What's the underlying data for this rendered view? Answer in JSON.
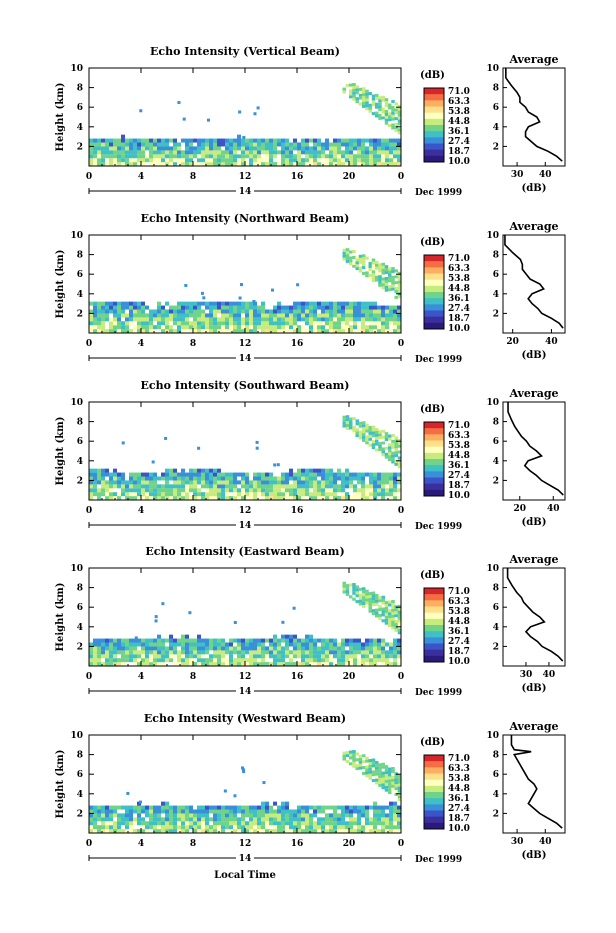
{
  "figure": {
    "xlabel": "Local Time",
    "colorbar_unit": "(dB)",
    "colorbar_ticks": [
      "71.0",
      "63.3",
      "53.8",
      "44.8",
      "36.1",
      "27.4",
      "18.7",
      "10.0"
    ],
    "colorbar_colors": [
      "#d7262b",
      "#f46d43",
      "#fdae61",
      "#fee08b",
      "#ffffbf",
      "#c8eb7d",
      "#6fd48a",
      "#3fc0c6",
      "#3a8fd9",
      "#3b54c7",
      "#3b2f9e",
      "#2a1a7a"
    ],
    "avg_title": "Average",
    "avg_xlabel": "(dB)",
    "date_label": "Dec 1999",
    "day_label": "14",
    "x_ticks": [
      "0",
      "4",
      "8",
      "12",
      "16",
      "20",
      "0"
    ],
    "y_ticks": [
      "10",
      "8",
      "6",
      "4",
      "2"
    ],
    "ylabel": "Height (km)"
  },
  "chart_data": [
    {
      "type": "heatmap",
      "title": "Echo Intensity (Vertical Beam)",
      "xlabel": "Local Time",
      "ylabel": "Height (km)",
      "xlim": [
        0,
        24
      ],
      "ylim": [
        0,
        10
      ],
      "colorbar": {
        "label": "(dB)",
        "range": [
          10.0,
          71.0
        ]
      },
      "layer_top_km": 2.6,
      "cloud": {
        "time_range_h": [
          19.5,
          24
        ],
        "height_range_km": [
          3.5,
          8.0
        ]
      },
      "average_profile": {
        "x_ticks": [
          "30",
          "40"
        ],
        "xlim": [
          25,
          47
        ],
        "height_km": [
          10,
          9,
          8.2,
          7.5,
          7,
          6.5,
          6,
          5.5,
          5,
          4.5,
          4,
          3.5,
          3,
          2.5,
          2,
          1.5,
          1,
          0.5
        ],
        "db": [
          26,
          26,
          28,
          30,
          31,
          31,
          33,
          34,
          37,
          38,
          34,
          33,
          33,
          35,
          37,
          41,
          44,
          46
        ]
      }
    },
    {
      "type": "heatmap",
      "title": "Echo Intensity (Northward Beam)",
      "xlabel": "Local Time",
      "ylabel": "Height (km)",
      "xlim": [
        0,
        24
      ],
      "ylim": [
        0,
        10
      ],
      "colorbar": {
        "label": "(dB)",
        "range": [
          10.0,
          71.0
        ]
      },
      "layer_top_km": 2.9,
      "cloud": {
        "time_range_h": [
          19.5,
          24
        ],
        "height_range_km": [
          3.5,
          8.0
        ]
      },
      "average_profile": {
        "x_ticks": [
          "20",
          "40"
        ],
        "xlim": [
          15,
          47
        ],
        "height_km": [
          10,
          9,
          8.2,
          7.5,
          7,
          6.5,
          6,
          5.5,
          5,
          4.5,
          4,
          3.5,
          3,
          2.5,
          2,
          1.5,
          1,
          0.5
        ],
        "db": [
          16,
          16,
          20,
          24,
          25,
          25,
          27,
          29,
          34,
          36,
          30,
          28,
          30,
          33,
          35,
          40,
          44,
          46
        ]
      }
    },
    {
      "type": "heatmap",
      "title": "Echo Intensity (Southward Beam)",
      "xlabel": "Local Time",
      "ylabel": "Height (km)",
      "xlim": [
        0,
        24
      ],
      "ylim": [
        0,
        10
      ],
      "colorbar": {
        "label": "(dB)",
        "range": [
          10.0,
          71.0
        ]
      },
      "layer_top_km": 2.8,
      "cloud": {
        "time_range_h": [
          19.5,
          24
        ],
        "height_range_km": [
          3.5,
          8.0
        ]
      },
      "average_profile": {
        "x_ticks": [
          "20",
          "40"
        ],
        "xlim": [
          10,
          47
        ],
        "height_km": [
          10,
          9,
          8.2,
          7.5,
          7,
          6.5,
          6,
          5.5,
          5,
          4.5,
          4,
          3.5,
          3,
          2.5,
          2,
          1.5,
          1,
          0.5
        ],
        "db": [
          13,
          13,
          15,
          17,
          19,
          21,
          24,
          26,
          30,
          33,
          25,
          23,
          26,
          30,
          33,
          38,
          43,
          46
        ]
      }
    },
    {
      "type": "heatmap",
      "title": "Echo Intensity (Eastward Beam)",
      "xlabel": "Local Time",
      "ylabel": "Height (km)",
      "xlim": [
        0,
        24
      ],
      "ylim": [
        0,
        10
      ],
      "colorbar": {
        "label": "(dB)",
        "range": [
          10.0,
          71.0
        ]
      },
      "layer_top_km": 2.7,
      "cloud": {
        "time_range_h": [
          19.5,
          24
        ],
        "height_range_km": [
          3.5,
          8.0
        ]
      },
      "average_profile": {
        "x_ticks": [
          "30",
          "40"
        ],
        "xlim": [
          20,
          47
        ],
        "height_km": [
          10,
          9,
          8.2,
          7.5,
          7,
          6.5,
          6,
          5.5,
          5,
          4.5,
          4,
          3.5,
          3,
          2.5,
          2,
          1.5,
          1,
          0.5
        ],
        "db": [
          22,
          22,
          24,
          26,
          28,
          29,
          31,
          33,
          36,
          38,
          32,
          30,
          32,
          35,
          37,
          41,
          44,
          46
        ]
      }
    },
    {
      "type": "heatmap",
      "title": "Echo Intensity (Westward Beam)",
      "xlabel": "Local Time",
      "ylabel": "Height (km)",
      "xlim": [
        0,
        24
      ],
      "ylim": [
        0,
        10
      ],
      "colorbar": {
        "label": "(dB)",
        "range": [
          10.0,
          71.0
        ]
      },
      "layer_top_km": 2.7,
      "cloud": {
        "time_range_h": [
          19.5,
          24
        ],
        "height_range_km": [
          3.5,
          8.0
        ]
      },
      "average_profile": {
        "x_ticks": [
          "30",
          "40"
        ],
        "xlim": [
          25,
          47
        ],
        "height_km": [
          10,
          9,
          8.5,
          8.3,
          8,
          7.5,
          7,
          6.5,
          6,
          5.5,
          5,
          4.5,
          4,
          3.5,
          3,
          2.5,
          2,
          1.5,
          1,
          0.5
        ],
        "db": [
          28,
          28,
          29,
          35,
          29,
          30,
          31,
          32,
          33,
          34,
          36,
          37,
          36,
          35,
          34,
          36,
          38,
          41,
          44,
          46
        ]
      }
    }
  ]
}
